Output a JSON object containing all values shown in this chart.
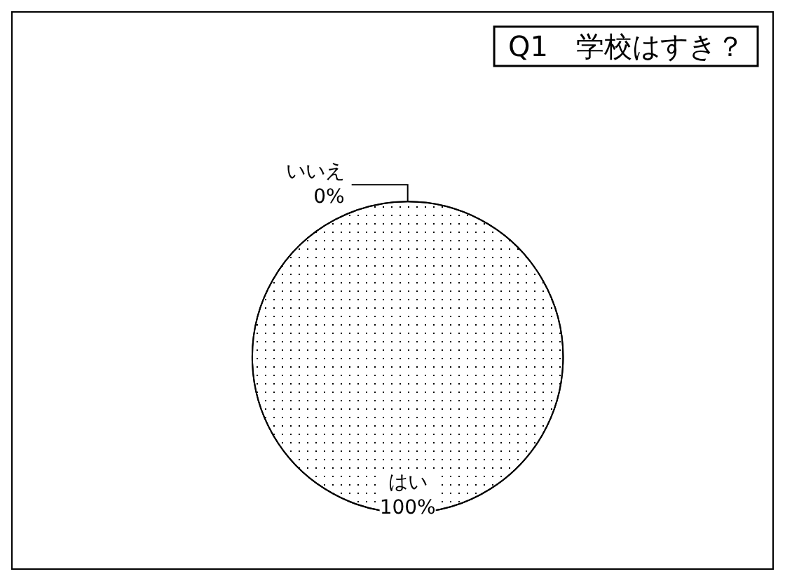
{
  "chart_data": {
    "type": "pie",
    "title": "Q1　学校はすき？",
    "categories": [
      "いいえ",
      "はい"
    ],
    "values": [
      0,
      100
    ],
    "colors": [
      "#ffffff",
      "#ffffff"
    ],
    "value_labels": [
      "0%",
      "100%"
    ]
  }
}
